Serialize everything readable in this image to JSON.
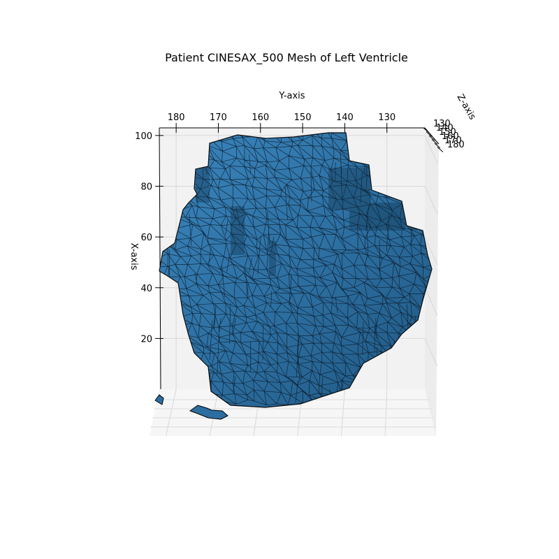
{
  "chart_data": {
    "type": "3d-surface-mesh",
    "title": "Patient CINESAX_500 Mesh of Left Ventricle",
    "ylabel_3d": "Y-axis",
    "xlabel_3d": "X-axis",
    "zlabel_3d": "Z-axis",
    "y_ticks": [
      "180",
      "170",
      "160",
      "150",
      "140",
      "130"
    ],
    "y_tick_values": [
      180,
      170,
      160,
      150,
      140,
      130
    ],
    "x_ticks": [
      "100",
      "80",
      "60",
      "40",
      "20"
    ],
    "x_tick_values": [
      100,
      80,
      60,
      40,
      20
    ],
    "z_ticks": [
      "130",
      "140",
      "150",
      "160",
      "170",
      "180"
    ],
    "z_tick_values": [
      130,
      140,
      150,
      160,
      170,
      180
    ],
    "y_range": [
      184,
      121
    ],
    "x_range": [
      0,
      103
    ],
    "z_range": [
      130,
      180
    ],
    "grid": true,
    "mesh_color": "#2c6ea0",
    "edge_color": "#000000",
    "pane_color": "#f2f2f2"
  }
}
